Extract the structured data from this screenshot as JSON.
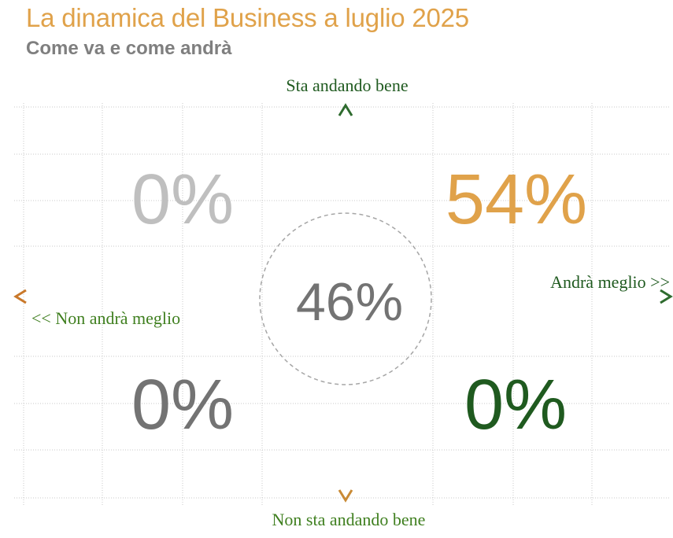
{
  "header": {
    "title": "La dinamica del Business a luglio 2025",
    "subtitle": "Come va e come andrà"
  },
  "axes": {
    "top": "Sta andando bene",
    "bottom": "Non sta andando bene",
    "right": "Andrà meglio >>",
    "left": "<< Non andrà meglio"
  },
  "quadrants": {
    "top_left": "0%",
    "top_right": "54%",
    "bottom_left": "0%",
    "bottom_right": "0%",
    "center": "46%"
  },
  "colors": {
    "orange": "#e0a24a",
    "dark_green": "#1f5a1f",
    "light_gray": "#bfbfbf",
    "mid_gray": "#737373",
    "title_orange": "#e0a24a"
  }
}
